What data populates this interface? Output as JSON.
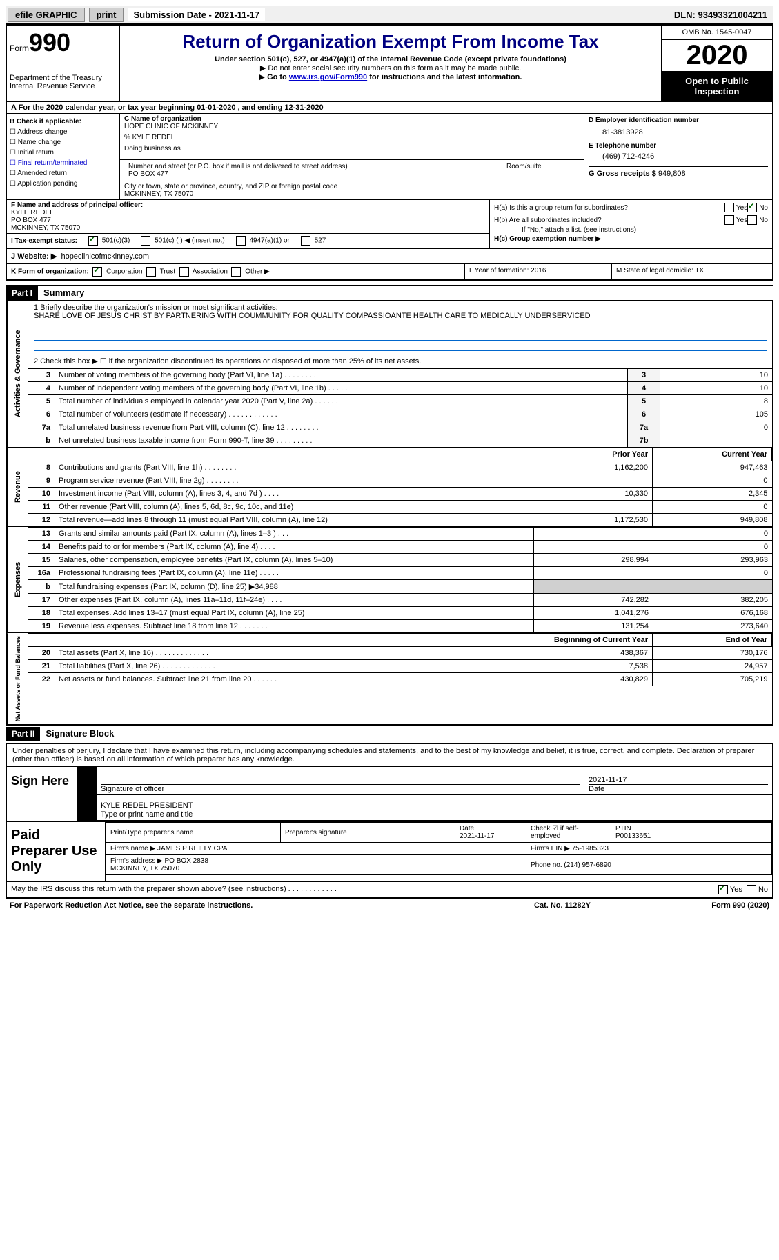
{
  "topbar": {
    "efile": "efile GRAPHIC",
    "print": "print",
    "submission": "Submission Date - 2021-11-17",
    "dln": "DLN: 93493321004211"
  },
  "header": {
    "form_label": "Form",
    "form_number": "990",
    "dept": "Department of the Treasury\nInternal Revenue Service",
    "title": "Return of Organization Exempt From Income Tax",
    "sub1": "Under section 501(c), 527, or 4947(a)(1) of the Internal Revenue Code (except private foundations)",
    "sub2": "Do not enter social security numbers on this form as it may be made public.",
    "sub3_pre": "Go to ",
    "sub3_link": "www.irs.gov/Form990",
    "sub3_post": " for instructions and the latest information.",
    "omb": "OMB No. 1545-0047",
    "year": "2020",
    "otp": "Open to Public Inspection"
  },
  "row_a": "A For the 2020 calendar year, or tax year beginning 01-01-2020    , and ending 12-31-2020",
  "section_b": {
    "label": "B Check if applicable:",
    "items": [
      "Address change",
      "Name change",
      "Initial return",
      "Final return/terminated",
      "Amended return",
      "Application pending"
    ]
  },
  "section_c": {
    "name_lbl": "C Name of organization",
    "name": "HOPE CLINIC OF MCKINNEY",
    "care_of": "% KYLE REDEL",
    "dba_lbl": "Doing business as",
    "addr_lbl": "Number and street (or P.O. box if mail is not delivered to street address)",
    "room_lbl": "Room/suite",
    "addr": "PO BOX 477",
    "city_lbl": "City or town, state or province, country, and ZIP or foreign postal code",
    "city": "MCKINNEY, TX  75070"
  },
  "section_d": {
    "ein_lbl": "D Employer identification number",
    "ein": "81-3813928",
    "phone_lbl": "E Telephone number",
    "phone": "(469) 712-4246",
    "gross_lbl": "G Gross receipts $",
    "gross": "949,808"
  },
  "section_f": {
    "lbl": "F Name and address of principal officer:",
    "name": "KYLE REDEL",
    "addr1": "PO BOX 477",
    "addr2": "MCKINNEY, TX  75070"
  },
  "section_h": {
    "ha": "H(a)  Is this a group return for subordinates?",
    "hb": "H(b)  Are all subordinates included?",
    "hb_note": "If \"No,\" attach a list. (see instructions)",
    "hc": "H(c)  Group exemption number ▶"
  },
  "tax_status": {
    "lbl": "I   Tax-exempt status:",
    "opt1": "501(c)(3)",
    "opt2": "501(c) (  ) ◀ (insert no.)",
    "opt3": "4947(a)(1) or",
    "opt4": "527"
  },
  "website": {
    "lbl": "J   Website: ▶",
    "val": "hopeclinicofmckinney.com"
  },
  "row_k": {
    "k_lbl": "K Form of organization:",
    "k_opts": [
      "Corporation",
      "Trust",
      "Association",
      "Other ▶"
    ],
    "l": "L Year of formation: 2016",
    "m": "M State of legal domicile: TX"
  },
  "part1": {
    "hdr": "Part I",
    "title": "Summary",
    "mission_lbl": "1  Briefly describe the organization's mission or most significant activities:",
    "mission": "SHARE LOVE OF JESUS CHRIST BY PARTNERING WITH COUMMUNITY FOR QUALITY COMPASSIOANTE HEALTH CARE TO MEDICALLY UNDERSERVICED",
    "line2": "2    Check this box ▶ ☐  if the organization discontinued its operations or disposed of more than 25% of its net assets.",
    "governance": [
      {
        "n": "3",
        "d": "Number of voting members of the governing body (Part VI, line 1a)    .    .    .    .    .    .    .    .",
        "b": "3",
        "v": "10"
      },
      {
        "n": "4",
        "d": "Number of independent voting members of the governing body (Part VI, line 1b)    .    .    .    .    .",
        "b": "4",
        "v": "10"
      },
      {
        "n": "5",
        "d": "Total number of individuals employed in calendar year 2020 (Part V, line 2a)    .    .    .    .    .    .",
        "b": "5",
        "v": "8"
      },
      {
        "n": "6",
        "d": "Total number of volunteers (estimate if necessary)    .    .    .    .    .    .    .    .    .    .    .    .",
        "b": "6",
        "v": "105"
      },
      {
        "n": "7a",
        "d": "Total unrelated business revenue from Part VIII, column (C), line 12    .    .    .    .    .    .    .    .",
        "b": "7a",
        "v": "0"
      },
      {
        "n": "b",
        "d": "Net unrelated business taxable income from Form 990-T, line 39    .    .    .    .    .    .    .    .    .",
        "b": "7b",
        "v": ""
      }
    ],
    "col_hdr_prior": "Prior Year",
    "col_hdr_current": "Current Year",
    "revenue": [
      {
        "n": "8",
        "d": "Contributions and grants (Part VIII, line 1h)    .    .    .    .    .    .    .    .",
        "p": "1,162,200",
        "c": "947,463"
      },
      {
        "n": "9",
        "d": "Program service revenue (Part VIII, line 2g)    .    .    .    .    .    .    .    .",
        "p": "",
        "c": "0"
      },
      {
        "n": "10",
        "d": "Investment income (Part VIII, column (A), lines 3, 4, and 7d )    .    .    .    .",
        "p": "10,330",
        "c": "2,345"
      },
      {
        "n": "11",
        "d": "Other revenue (Part VIII, column (A), lines 5, 6d, 8c, 9c, 10c, and 11e)",
        "p": "",
        "c": "0"
      },
      {
        "n": "12",
        "d": "Total revenue—add lines 8 through 11 (must equal Part VIII, column (A), line 12)",
        "p": "1,172,530",
        "c": "949,808"
      }
    ],
    "expenses": [
      {
        "n": "13",
        "d": "Grants and similar amounts paid (Part IX, column (A), lines 1–3 )    .    .    .",
        "p": "",
        "c": "0"
      },
      {
        "n": "14",
        "d": "Benefits paid to or for members (Part IX, column (A), line 4)    .    .    .    .",
        "p": "",
        "c": "0"
      },
      {
        "n": "15",
        "d": "Salaries, other compensation, employee benefits (Part IX, column (A), lines 5–10)",
        "p": "298,994",
        "c": "293,963"
      },
      {
        "n": "16a",
        "d": "Professional fundraising fees (Part IX, column (A), line 11e)    .    .    .    .    .",
        "p": "",
        "c": "0"
      },
      {
        "n": "b",
        "d": "Total fundraising expenses (Part IX, column (D), line 25) ▶34,988",
        "p": "shade",
        "c": "shade"
      },
      {
        "n": "17",
        "d": "Other expenses (Part IX, column (A), lines 11a–11d, 11f–24e)    .    .    .    .",
        "p": "742,282",
        "c": "382,205"
      },
      {
        "n": "18",
        "d": "Total expenses. Add lines 13–17 (must equal Part IX, column (A), line 25)",
        "p": "1,041,276",
        "c": "676,168"
      },
      {
        "n": "19",
        "d": "Revenue less expenses. Subtract line 18 from line 12    .    .    .    .    .    .    .",
        "p": "131,254",
        "c": "273,640"
      }
    ],
    "col_hdr_boy": "Beginning of Current Year",
    "col_hdr_eoy": "End of Year",
    "netassets": [
      {
        "n": "20",
        "d": "Total assets (Part X, line 16)    .    .    .    .    .    .    .    .    .    .    .    .    .",
        "p": "438,367",
        "c": "730,176"
      },
      {
        "n": "21",
        "d": "Total liabilities (Part X, line 26)    .    .    .    .    .    .    .    .    .    .    .    .    .",
        "p": "7,538",
        "c": "24,957"
      },
      {
        "n": "22",
        "d": "Net assets or fund balances. Subtract line 21 from line 20    .    .    .    .    .    .",
        "p": "430,829",
        "c": "705,219"
      }
    ],
    "vtab_gov": "Activities & Governance",
    "vtab_rev": "Revenue",
    "vtab_exp": "Expenses",
    "vtab_net": "Net Assets or Fund Balances"
  },
  "part2": {
    "hdr": "Part II",
    "title": "Signature Block",
    "disclaimer": "Under penalties of perjury, I declare that I have examined this return, including accompanying schedules and statements, and to the best of my knowledge and belief, it is true, correct, and complete. Declaration of preparer (other than officer) is based on all information of which preparer has any knowledge."
  },
  "sign": {
    "lbl": "Sign Here",
    "sig_officer_lbl": "Signature of officer",
    "date": "2021-11-17",
    "date_lbl": "Date",
    "name": "KYLE REDEL PRESIDENT",
    "name_lbl": "Type or print name and title"
  },
  "paid": {
    "lbl": "Paid Preparer Use Only",
    "preparer_name_lbl": "Print/Type preparer's name",
    "preparer_sig_lbl": "Preparer's signature",
    "date_lbl": "Date",
    "date": "2021-11-17",
    "check_lbl": "Check ☑ if self-employed",
    "ptin_lbl": "PTIN",
    "ptin": "P00133651",
    "firm_name_lbl": "Firm's name    ▶",
    "firm_name": "JAMES P REILLY CPA",
    "firm_ein_lbl": "Firm's EIN ▶",
    "firm_ein": "75-1985323",
    "firm_addr_lbl": "Firm's address ▶",
    "firm_addr": "PO BOX 2838\nMCKINNEY, TX  75070",
    "phone_lbl": "Phone no.",
    "phone": "(214) 957-6890"
  },
  "may": "May the IRS discuss this return with the preparer shown above? (see instructions)    .    .    .    .    .    .    .    .    .    .    .    .",
  "footer": {
    "left": "For Paperwork Reduction Act Notice, see the separate instructions.",
    "mid": "Cat. No. 11282Y",
    "right": "Form 990 (2020)"
  }
}
